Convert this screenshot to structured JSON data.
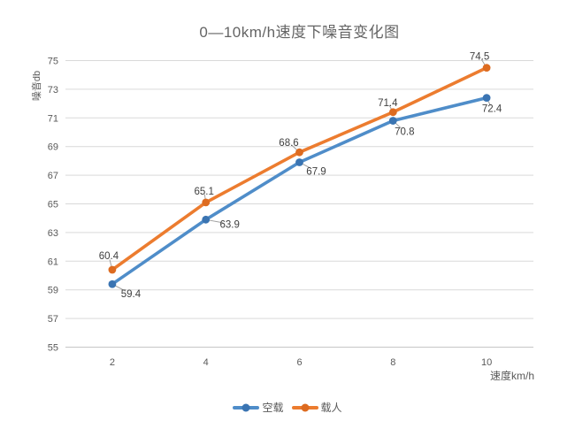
{
  "chart_data": {
    "type": "line",
    "title": "0—10km/h速度下噪音变化图",
    "xlabel": "速度km/h",
    "ylabel": "噪音db",
    "categories": [
      2,
      4,
      6,
      8,
      10
    ],
    "series": [
      {
        "name": "空载",
        "color": "#4f8dc9",
        "marker_color": "#3a74b2",
        "values": [
          59.4,
          63.9,
          67.9,
          70.8,
          72.4
        ]
      },
      {
        "name": "载人",
        "color": "#ec7c2f",
        "marker_color": "#dd6b20",
        "values": [
          60.4,
          65.1,
          68.6,
          71.4,
          74.5
        ]
      }
    ],
    "ylim": [
      55,
      75
    ],
    "ytick_step": 2,
    "grid": "horizontal",
    "legend_position": "bottom",
    "colors": {
      "grid": "#d9d9d9",
      "axis": "#c6c6c6",
      "tick_text": "#595959",
      "data_label_text": "#3f3f3f",
      "leader_line": "#a0a0a0"
    }
  }
}
